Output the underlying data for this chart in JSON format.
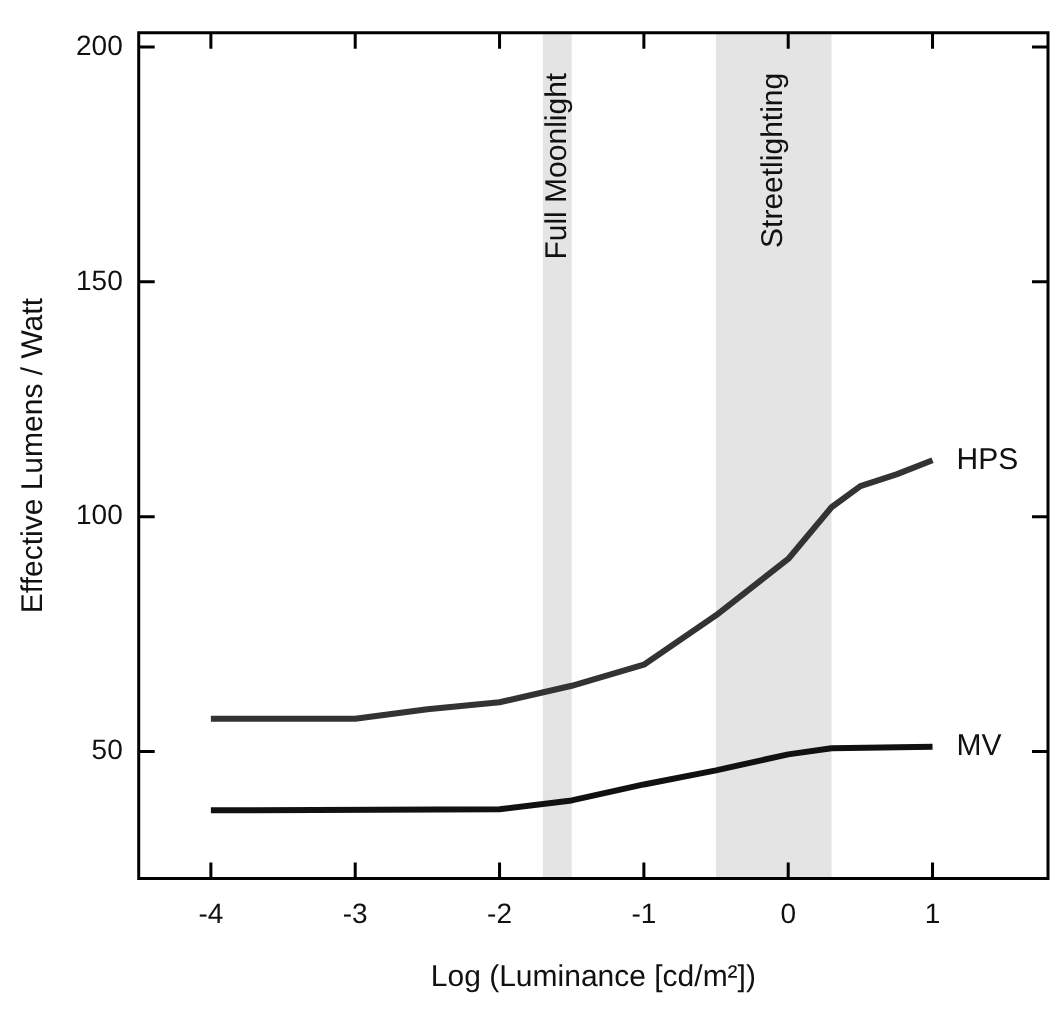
{
  "chart_data": {
    "type": "line",
    "xlabel": "Log (Luminance [cd/m²])",
    "ylabel": "Effective Lumens / Watt",
    "xlim": [
      -4.5,
      1.8
    ],
    "xticks": [
      -4,
      -3,
      -2,
      -1,
      0,
      1
    ],
    "ylim": [
      23,
      203
    ],
    "yticks": [
      50,
      100,
      150,
      200
    ],
    "grid": false,
    "legend": false,
    "marker": "none",
    "line_style": "solid",
    "series": [
      {
        "name": "HPS",
        "color": "#333333",
        "x": [
          -4,
          -3,
          -2.5,
          -2,
          -1.5,
          -1,
          -0.5,
          0,
          0.3,
          0.5,
          0.75,
          1
        ],
        "values": [
          57,
          57,
          59,
          60.5,
          64,
          68.5,
          79,
          91,
          102,
          106.5,
          109,
          112
        ]
      },
      {
        "name": "MV",
        "color": "#111111",
        "x": [
          -4,
          -2,
          -1.5,
          -1,
          -0.5,
          0,
          0.3,
          1
        ],
        "values": [
          37.5,
          37.7,
          39.6,
          43,
          46,
          49.4,
          50.7,
          51
        ]
      }
    ],
    "bands": [
      {
        "axis": "x",
        "from": -1.7,
        "to": -1.5,
        "label": "Full Moonlight",
        "color": "#e4e4e4"
      },
      {
        "axis": "x",
        "from": -0.5,
        "to": 0.3,
        "label": "Streetlighting",
        "color": "#e4e4e4"
      }
    ]
  }
}
